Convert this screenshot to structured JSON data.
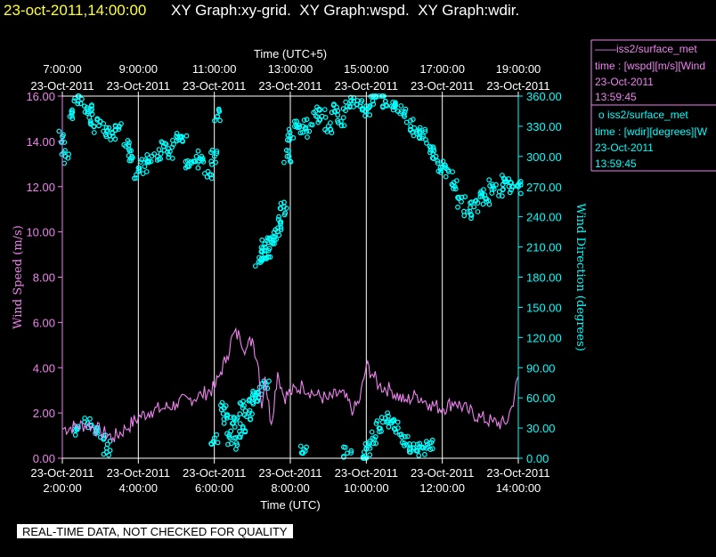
{
  "header": {
    "timestamp": "23-oct-2011,14:00:00",
    "graphs": [
      "XY Graph:xy-grid.",
      "XY Graph:wspd.",
      "XY Graph:wdir."
    ]
  },
  "footer": {
    "quality_note": "REAL-TIME DATA, NOT CHECKED FOR QUALITY"
  },
  "legend": [
    {
      "symbol": "——",
      "source": "iss2/surface_met",
      "line": "time : [wspd][m/s][Wind",
      "date": "23-Oct-2011",
      "time": "13:59:45",
      "color": "#ee82ee"
    },
    {
      "symbol": "o",
      "source": "iss2/surface_met",
      "line": "time : [wdir][degrees][W",
      "date": "23-Oct-2011",
      "time": "13:59:45",
      "color": "#00ffff"
    }
  ],
  "chart_data": {
    "type": "line",
    "grid": "vertical lines every 2 hours",
    "top_axis": {
      "label": "Time (UTC+5)",
      "ticks": [
        {
          "time": "7:00:00",
          "date": "23-Oct-2011"
        },
        {
          "time": "9:00:00",
          "date": "23-Oct-2011"
        },
        {
          "time": "11:00:00",
          "date": "23-Oct-2011"
        },
        {
          "time": "13:00:00",
          "date": "23-Oct-2011"
        },
        {
          "time": "15:00:00",
          "date": "23-Oct-2011"
        },
        {
          "time": "17:00:00",
          "date": "23-Oct-2011"
        },
        {
          "time": "19:00:00",
          "date": "23-Oct-2011"
        }
      ]
    },
    "bottom_axis": {
      "label": "Time (UTC)",
      "range": [
        "2011-10-23 02:00",
        "2011-10-23 14:00"
      ],
      "ticks": [
        {
          "date": "23-Oct-2011",
          "time": "2:00:00"
        },
        {
          "date": "23-Oct-2011",
          "time": "4:00:00"
        },
        {
          "date": "23-Oct-2011",
          "time": "6:00:00"
        },
        {
          "date": "23-Oct-2011",
          "time": "8:00:00"
        },
        {
          "date": "23-Oct-2011",
          "time": "10:00:00"
        },
        {
          "date": "23-Oct-2011",
          "time": "12:00:00"
        },
        {
          "date": "23-Oct-2011",
          "time": "14:00:00"
        }
      ]
    },
    "y_left": {
      "label": "Wind Speed (m/s)",
      "range": [
        0,
        16
      ],
      "ticks": [
        "0.00",
        "2.00",
        "4.00",
        "6.00",
        "8.00",
        "10.00",
        "12.00",
        "14.00",
        "16.00"
      ],
      "color": "#ee82ee"
    },
    "y_right": {
      "label": "Wind Direction (degrees)",
      "range": [
        0,
        360
      ],
      "ticks": [
        "0.00",
        "30.00",
        "60.00",
        "90.00",
        "120.00",
        "150.00",
        "180.00",
        "210.00",
        "240.00",
        "270.00",
        "300.00",
        "330.00",
        "360.00"
      ],
      "color": "#00ffff"
    },
    "series": [
      {
        "key": "wspd",
        "kind": "line",
        "axis": "left",
        "color": "#ee82ee",
        "x": [
          "02:00",
          "02:20",
          "02:40",
          "03:00",
          "03:20",
          "03:40",
          "04:00",
          "04:20",
          "04:40",
          "05:00",
          "05:20",
          "05:40",
          "06:00",
          "06:10",
          "06:20",
          "06:30",
          "06:40",
          "06:50",
          "07:00",
          "07:10",
          "07:15",
          "07:20",
          "07:30",
          "07:40",
          "07:50",
          "08:00",
          "08:20",
          "08:40",
          "09:00",
          "09:20",
          "09:40",
          "09:50",
          "10:00",
          "10:10",
          "10:20",
          "10:40",
          "11:00",
          "11:20",
          "11:40",
          "12:00",
          "12:20",
          "12:40",
          "13:00",
          "13:20",
          "13:40",
          "13:50",
          "14:00"
        ],
        "values": [
          1.3,
          1.4,
          1.5,
          1.2,
          0.9,
          1.3,
          1.8,
          2.1,
          2.2,
          2.4,
          2.6,
          2.8,
          3.1,
          3.8,
          4.5,
          5.5,
          5.4,
          4.8,
          5.3,
          4.0,
          2.2,
          3.6,
          1.5,
          3.8,
          2.7,
          2.9,
          3.2,
          2.8,
          2.6,
          2.9,
          2.1,
          2.6,
          4.1,
          3.7,
          3.2,
          3.0,
          2.5,
          2.8,
          2.4,
          2.2,
          2.5,
          2.1,
          1.8,
          1.6,
          1.5,
          2.3,
          3.6
        ]
      },
      {
        "key": "wdir",
        "kind": "scatter",
        "axis": "right",
        "color": "#00ffff",
        "x": [
          "02:00",
          "02:05",
          "02:15",
          "02:25",
          "02:35",
          "02:45",
          "02:50",
          "03:00",
          "03:10",
          "03:20",
          "03:30",
          "03:40",
          "03:50",
          "04:00",
          "04:10",
          "04:20",
          "04:30",
          "04:40",
          "04:50",
          "05:00",
          "05:10",
          "05:20",
          "05:30",
          "05:40",
          "05:50",
          "06:00",
          "06:05",
          "06:15",
          "06:25",
          "06:35",
          "06:45",
          "06:55",
          "07:05",
          "07:10",
          "07:15",
          "07:20",
          "07:25",
          "07:30",
          "07:35",
          "07:40",
          "07:45",
          "07:50",
          "07:55",
          "08:00",
          "08:10",
          "08:20",
          "08:30",
          "08:40",
          "08:50",
          "09:00",
          "09:10",
          "09:20",
          "09:30",
          "09:40",
          "09:50",
          "10:00",
          "10:10",
          "10:20",
          "10:30",
          "10:40",
          "10:50",
          "11:00",
          "11:10",
          "11:20",
          "11:30",
          "11:40",
          "11:50",
          "12:00",
          "12:10",
          "12:20",
          "12:30",
          "12:40",
          "12:50",
          "13:00",
          "13:10",
          "13:20",
          "13:30",
          "13:40",
          "13:50",
          "14:00",
          "02:25",
          "02:40",
          "02:55",
          "03:05",
          "06:20",
          "06:30",
          "06:45",
          "07:00",
          "07:10",
          "07:20",
          "08:20",
          "09:30",
          "10:00",
          "10:10",
          "10:20",
          "10:30",
          "10:40",
          "10:50",
          "11:00",
          "11:10",
          "11:20",
          "11:30",
          "11:40",
          "06:00",
          "10:00",
          "03:10"
        ],
        "values": [
          320,
          300,
          340,
          355,
          350,
          345,
          330,
          335,
          325,
          320,
          330,
          310,
          300,
          285,
          290,
          295,
          300,
          310,
          305,
          320,
          315,
          290,
          295,
          300,
          285,
          300,
          340,
          50,
          20,
          15,
          30,
          45,
          60,
          195,
          205,
          210,
          200,
          215,
          220,
          225,
          235,
          250,
          300,
          320,
          335,
          330,
          325,
          345,
          340,
          330,
          345,
          335,
          350,
          355,
          350,
          345,
          355,
          360,
          355,
          350,
          345,
          340,
          330,
          325,
          320,
          310,
          300,
          290,
          285,
          270,
          255,
          245,
          250,
          260,
          255,
          270,
          265,
          275,
          270,
          270,
          30,
          35,
          25,
          20,
          40,
          35,
          50,
          60,
          65,
          70,
          5,
          5,
          10,
          20,
          30,
          40,
          35,
          30,
          15,
          10,
          8,
          10,
          15,
          20,
          0,
          10
        ]
      }
    ]
  }
}
